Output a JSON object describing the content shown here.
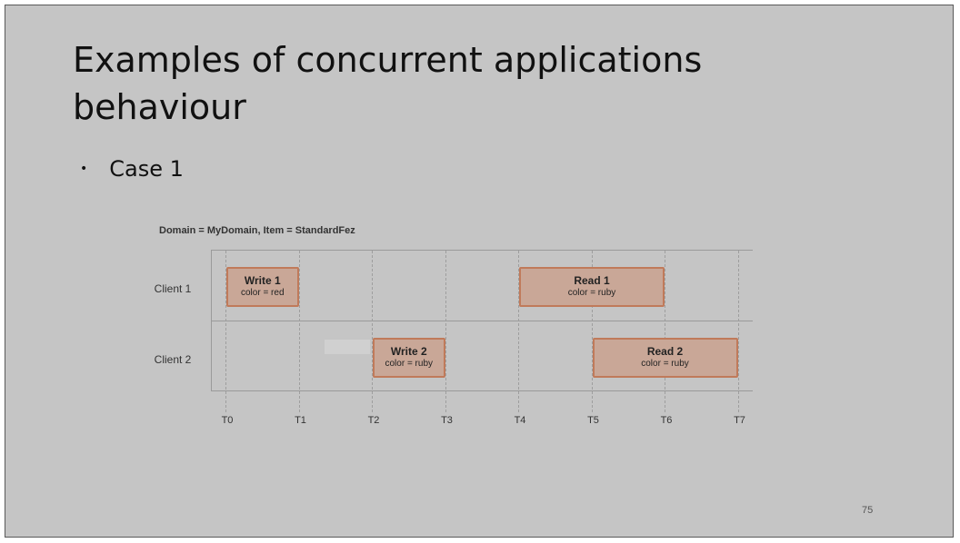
{
  "slide": {
    "title": "Examples of concurrent applications behaviour",
    "bullet": "Case 1",
    "page_number": "75"
  },
  "diagram": {
    "header": "Domain = MyDomain, Item = StandardFez",
    "clients": [
      "Client 1",
      "Client 2"
    ],
    "times": [
      "T0",
      "T1",
      "T2",
      "T3",
      "T4",
      "T5",
      "T6",
      "T7"
    ],
    "operations": [
      {
        "client": 0,
        "start": 0,
        "end": 1,
        "name": "Write 1",
        "attr": "color = red"
      },
      {
        "client": 0,
        "start": 4,
        "end": 6,
        "name": "Read 1",
        "attr": "color = ruby"
      },
      {
        "client": 1,
        "start": 2,
        "end": 3,
        "name": "Write 2",
        "attr": "color = ruby"
      },
      {
        "client": 1,
        "start": 5,
        "end": 7,
        "name": "Read 2",
        "attr": "color = ruby"
      }
    ],
    "colors": {
      "op_fill": "#c9a797",
      "op_border": "#c07a5a"
    }
  }
}
